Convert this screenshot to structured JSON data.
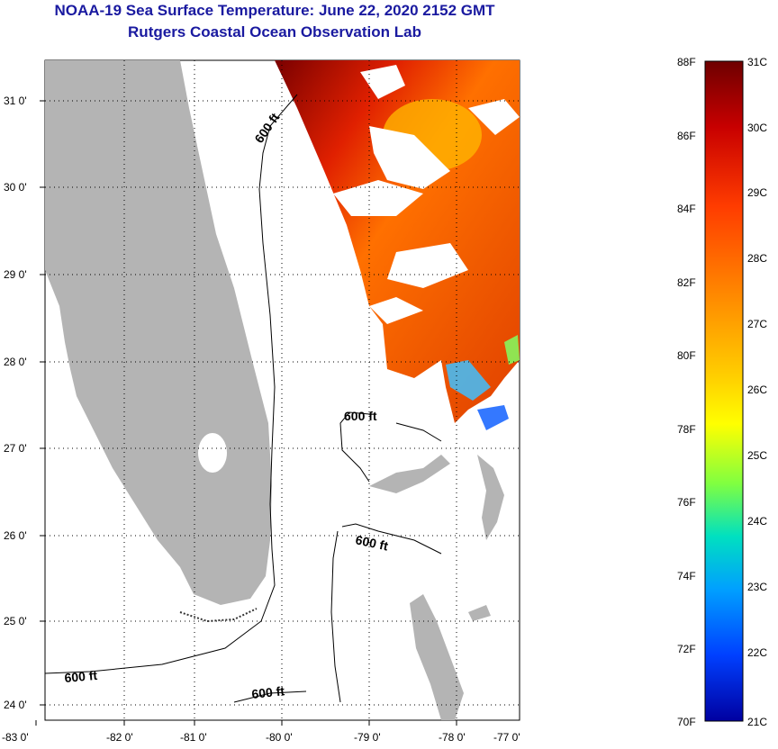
{
  "header": {
    "title": "NOAA-19 Sea Surface Temperature:  June 22, 2020 2152 GMT",
    "subtitle": "Rutgers Coastal Ocean Observation Lab"
  },
  "map": {
    "lon_ticks": [
      "-83 0'",
      "-82 0'",
      "-81 0'",
      "-80 0'",
      "-79 0'",
      "-78 0'",
      "-77 0'"
    ],
    "lat_ticks": [
      "31 0'",
      "30 0'",
      "29 0'",
      "28 0'",
      "27 0'",
      "26 0'",
      "25 0'",
      "24 0'"
    ],
    "contour_labels": [
      "600 ft",
      "600 ft",
      "600 ft",
      "600 ft",
      "600 ft"
    ],
    "colors": {
      "land": "#b4b4b4",
      "ocean": "#ffffff",
      "grid": "#000000"
    }
  },
  "colorbar": {
    "fahrenheit": [
      "88F",
      "86F",
      "84F",
      "82F",
      "80F",
      "78F",
      "76F",
      "74F",
      "72F",
      "70F"
    ],
    "celsius": [
      "31C",
      "30C",
      "29C",
      "28C",
      "27C",
      "26C",
      "25C",
      "24C",
      "23C",
      "22C",
      "21C"
    ],
    "gradient": [
      "#6e0000",
      "#c80000",
      "#ff3c00",
      "#ff8c00",
      "#ffd000",
      "#ffff00",
      "#80ff40",
      "#00e0c0",
      "#00a0ff",
      "#0040ff",
      "#0000a0"
    ]
  }
}
